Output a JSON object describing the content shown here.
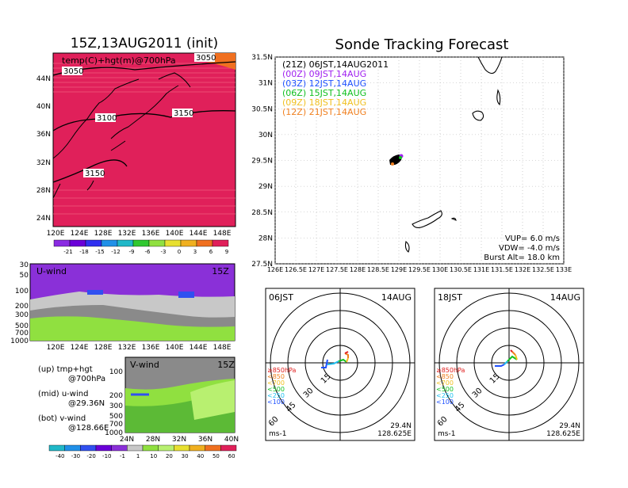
{
  "colors": {
    "temp_field": "#e0205a",
    "wind_purple": "#8a30d8",
    "wind_blue": "#3050f0",
    "wind_green": "#90e040",
    "wind_lightgreen": "#b8f070",
    "wind_gray": "#8a8a8a",
    "wind_lightgray": "#c8c8c8",
    "track_black": "#000000",
    "track_purple": "#a020f0",
    "track_blue": "#1e50ff",
    "track_green": "#10c020",
    "track_yellow": "#f0c020",
    "track_orange": "#f08020",
    "track_red": "#e02020",
    "track_cyan": "#20c0f0"
  },
  "left_panel": {
    "title": "15Z,13AUG2011 (init)",
    "map_label": "temp(C)+hgt(m)@700hPa",
    "lat_ticks": [
      "44N",
      "40N",
      "36N",
      "32N",
      "28N",
      "24N"
    ],
    "lon_ticks": [
      "120E",
      "124E",
      "128E",
      "132E",
      "136E",
      "140E",
      "144E",
      "148E"
    ],
    "contours": [
      "3050",
      "3100",
      "3150",
      "3150",
      "3050"
    ],
    "temp_colorbar": [
      "-21",
      "-18",
      "-15",
      "-12",
      "-9",
      "-6",
      "-3",
      "0",
      "3",
      "6",
      "9"
    ],
    "temp_colorbar_colors": [
      "#8a2be2",
      "#6a00d8",
      "#3030f0",
      "#2090e8",
      "#20b8c8",
      "#30c830",
      "#90e040",
      "#e8e030",
      "#f0b020",
      "#f07020",
      "#e0205a"
    ]
  },
  "u_panel": {
    "label": "U-wind",
    "time": "15Z",
    "p_ticks": [
      "30",
      "50",
      "100",
      "200",
      "300",
      "500",
      "700",
      "1000"
    ],
    "lon_ticks": [
      "120E",
      "124E",
      "128E",
      "132E",
      "136E",
      "140E",
      "144E",
      "148E"
    ]
  },
  "v_panel": {
    "label": "V-wind",
    "time": "15Z",
    "p_ticks": [
      "100",
      "200",
      "300",
      "500",
      "700",
      "1000"
    ],
    "lat_ticks": [
      "24N",
      "28N",
      "32N",
      "36N",
      "40N"
    ]
  },
  "legend_left": {
    "up_title": "(up) tmp+hgt",
    "up_sub": "@700hPa",
    "mid_title": "(mid) u-wind",
    "mid_sub": "@29.36N",
    "bot_title": "(bot) v-wind",
    "bot_sub": "@128.66E"
  },
  "wind_colorbar": [
    "-40",
    "-30",
    "-20",
    "-10",
    "-1",
    "1",
    "10",
    "20",
    "30",
    "40",
    "50",
    "60"
  ],
  "wind_colorbar_colors": [
    "#20b8c8",
    "#2090e8",
    "#3050f0",
    "#6a00d8",
    "#8a30d8",
    "#c8c8c8",
    "#90e040",
    "#b8f070",
    "#e8e030",
    "#f0b020",
    "#f07020",
    "#e0205a"
  ],
  "right_panel": {
    "title": "Sonde Tracking Forecast",
    "lat_ticks": [
      "31.5N",
      "31N",
      "30.5N",
      "30N",
      "29.5N",
      "29N",
      "28.5N",
      "28N",
      "27.5N"
    ],
    "lon_ticks": [
      "126E",
      "126.5E",
      "127E",
      "127.5E",
      "128E",
      "128.5E",
      "129E",
      "129.5E",
      "130E",
      "130.5E",
      "131E",
      "131.5E",
      "132E",
      "132.5E",
      "133E"
    ],
    "launch_legend": [
      {
        "zone": "(21Z)",
        "time": "06JST,14AUG2011",
        "color": "#000000"
      },
      {
        "zone": "(00Z)",
        "time": "09JST,14AUG",
        "color": "#a020f0"
      },
      {
        "zone": "(03Z)",
        "time": "12JST,14AUG",
        "color": "#1e50ff"
      },
      {
        "zone": "(06Z)",
        "time": "15JST,14AUG",
        "color": "#10c020"
      },
      {
        "zone": "(09Z)",
        "time": "18JST,14AUG",
        "color": "#f0c020"
      },
      {
        "zone": "(12Z)",
        "time": "21JST,14AUG",
        "color": "#f08020"
      }
    ],
    "params": {
      "vup": "VUP=  6.0  m/s",
      "vdw": "VDW= -4.0  m/s",
      "burst": "Burst Alt=  18.0  km"
    }
  },
  "polar_plots": [
    {
      "time": "06JST",
      "date": "14AUG",
      "coord_lat": "29.4N",
      "coord_lon": "128.625E",
      "unit": "ms-1",
      "ring_labels": [
        "15",
        "30",
        "45",
        "60"
      ],
      "levels": [
        {
          "label": "≥850hPa",
          "color": "#e02020"
        },
        {
          "label": "<850",
          "color": "#f08020"
        },
        {
          "label": "<700",
          "color": "#f0c020"
        },
        {
          "label": "<500",
          "color": "#10c020"
        },
        {
          "label": "<250",
          "color": "#20c0f0"
        },
        {
          "label": "<100",
          "color": "#1e50ff"
        }
      ]
    },
    {
      "time": "18JST",
      "date": "14AUG",
      "coord_lat": "29.4N",
      "coord_lon": "128.625E",
      "unit": "ms-1",
      "ring_labels": [
        "15",
        "30",
        "45",
        "60"
      ],
      "levels": [
        {
          "label": "≥850hPa",
          "color": "#e02020"
        },
        {
          "label": "<850",
          "color": "#f08020"
        },
        {
          "label": "<700",
          "color": "#f0c020"
        },
        {
          "label": "<500",
          "color": "#10c020"
        },
        {
          "label": "<250",
          "color": "#20c0f0"
        },
        {
          "label": "<100",
          "color": "#1e50ff"
        }
      ]
    }
  ]
}
